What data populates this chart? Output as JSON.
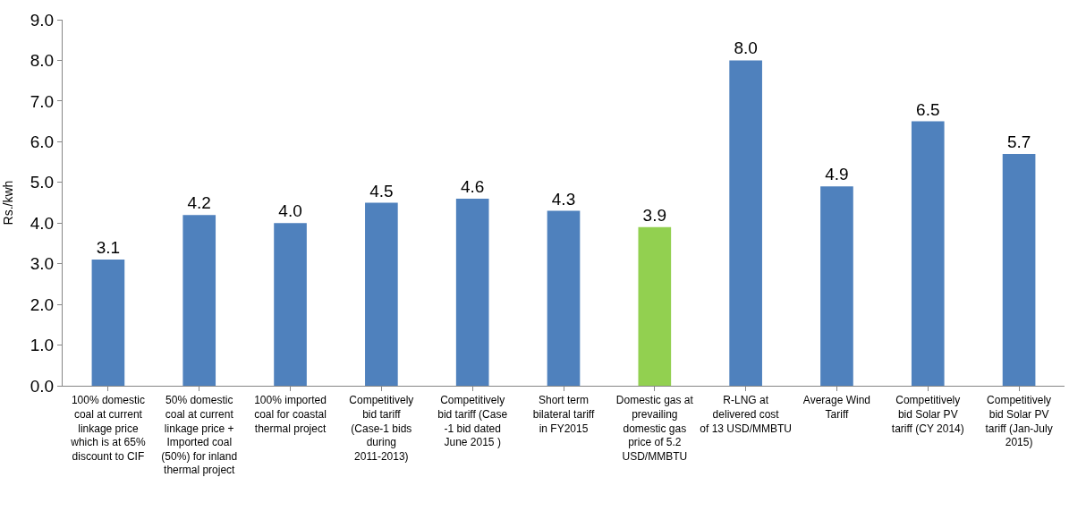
{
  "chart_data": {
    "type": "bar",
    "ylabel": "Rs./kwh",
    "categories": [
      "100% domestic coal at current linkage price which is at 65% discount to CIF",
      "50% domestic coal at current linkage price + Imported coal (50%) for inland thermal project",
      "100% imported coal for coastal thermal project",
      "Competitively bid tariff (Case-1 bids during 2011-2013)",
      "Competitively bid tariff (Case -1 bid dated June 2015 )",
      "Short term bilateral tariff in FY2015",
      "Domestic gas at prevailing domestic gas price of 5.2 USD/MMBTU",
      "R-LNG at delivered cost of 13 USD/MMBTU",
      "Average Wind Tariff",
      "Competitively bid Solar PV tariff (CY 2014)",
      "Competitively bid Solar PV tariff (Jan-July 2015)"
    ],
    "values": [
      3.1,
      4.2,
      4.0,
      4.5,
      4.6,
      4.3,
      3.9,
      8.0,
      4.9,
      6.5,
      5.7
    ],
    "value_labels": [
      "3.1",
      "4.2",
      "4.0",
      "4.5",
      "4.6",
      "4.3",
      "3.9",
      "8.0",
      "4.9",
      "6.5",
      "5.7"
    ],
    "colors": [
      "#4f81bd",
      "#4f81bd",
      "#4f81bd",
      "#4f81bd",
      "#4f81bd",
      "#4f81bd",
      "#92d050",
      "#4f81bd",
      "#4f81bd",
      "#4f81bd",
      "#4f81bd"
    ],
    "ylim": [
      0,
      9
    ],
    "yticks": [
      {
        "value": 0,
        "label": "0.0"
      },
      {
        "value": 1,
        "label": "1.0"
      },
      {
        "value": 2,
        "label": "2.0"
      },
      {
        "value": 3,
        "label": "3.0"
      },
      {
        "value": 4,
        "label": "4.0"
      },
      {
        "value": 5,
        "label": "5.0"
      },
      {
        "value": 6,
        "label": "6.0"
      },
      {
        "value": 7,
        "label": "7.0"
      },
      {
        "value": 8,
        "label": "8.0"
      },
      {
        "value": 9,
        "label": "9.0"
      }
    ]
  }
}
